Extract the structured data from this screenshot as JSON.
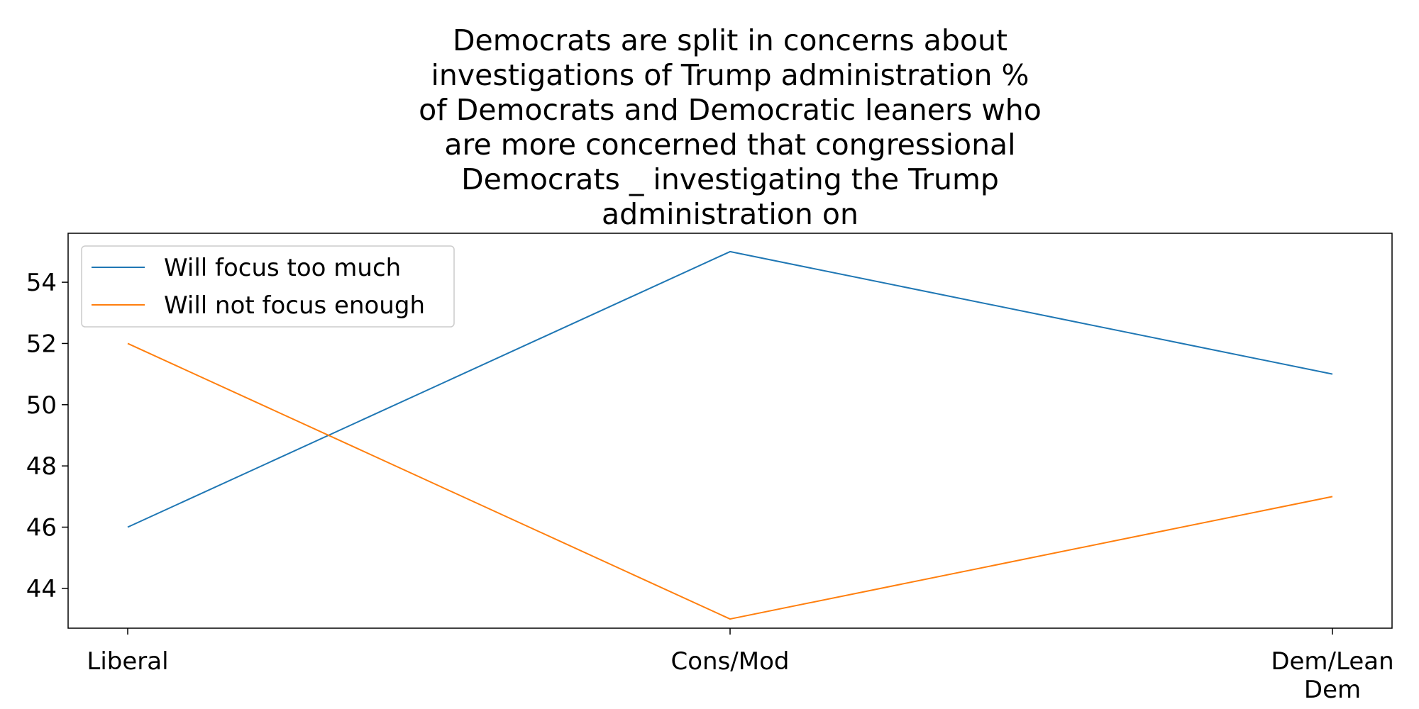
{
  "chart_data": {
    "type": "line",
    "title_lines": [
      "Democrats are split in concerns about",
      "investigations of Trump administration %",
      "of Democrats and Democratic leaners who",
      "are more concerned that congressional",
      "Democrats _ investigating the Trump",
      "administration on"
    ],
    "xlabel": "",
    "ylabel": "",
    "categories": [
      [
        "Liberal"
      ],
      [
        "Cons/Mod"
      ],
      [
        "Dem/Lean",
        "Dem"
      ]
    ],
    "ylim": [
      42.7,
      55.6
    ],
    "yticks": [
      44,
      46,
      48,
      50,
      52,
      54
    ],
    "grid": false,
    "legend_position": "top-left",
    "series": [
      {
        "name": "Will focus too much",
        "color": "#1f77b4",
        "values": [
          46,
          55,
          51
        ]
      },
      {
        "name": "Will not focus enough",
        "color": "#ff7f0e",
        "values": [
          52,
          43,
          47
        ]
      }
    ]
  }
}
